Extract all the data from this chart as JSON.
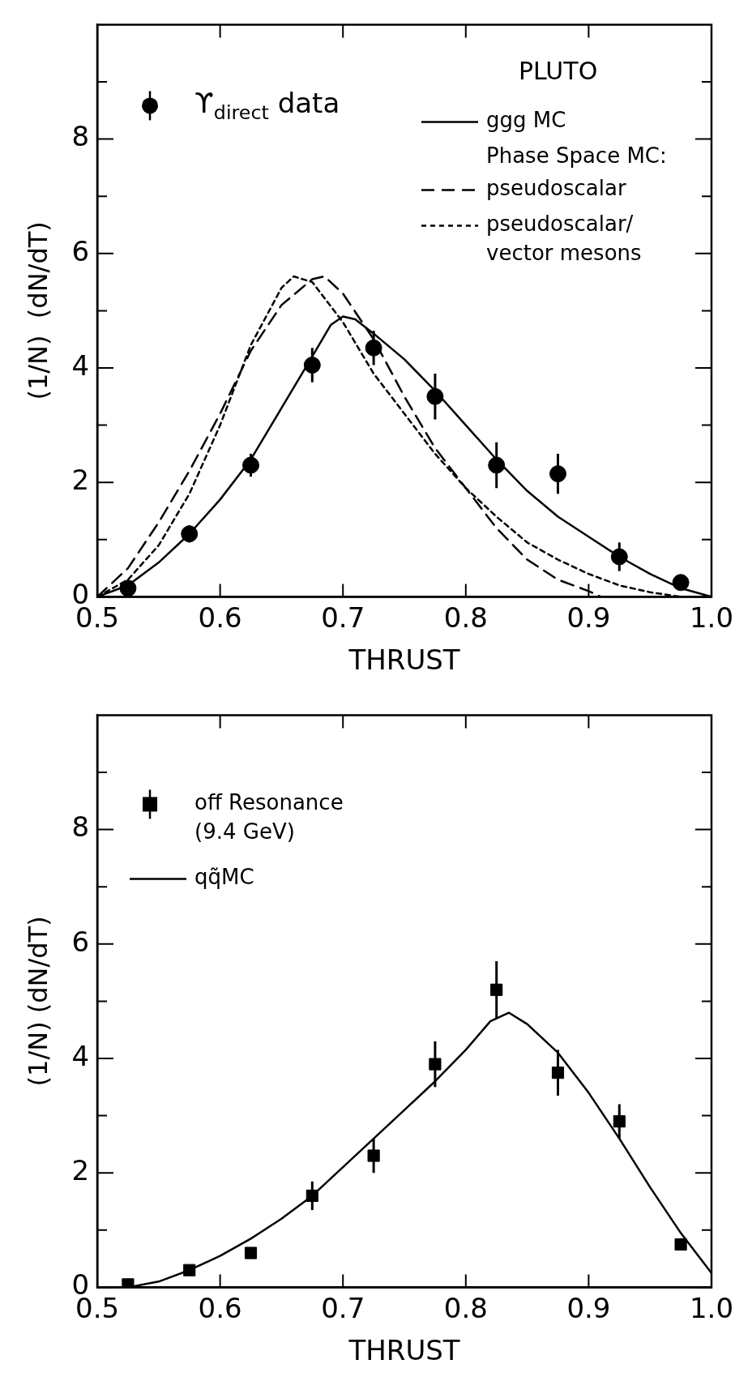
{
  "chart_data": [
    {
      "type": "scatter",
      "xlabel": "THRUST",
      "ylabel": "(1/N)  (dN/dT)",
      "xlim": [
        0.5,
        1.0
      ],
      "ylim": [
        0,
        10
      ],
      "xticks": [
        0.5,
        0.6,
        0.7,
        0.8,
        0.9,
        {
          "value": 1.0,
          "label": "1.0"
        }
      ],
      "yticks": [
        0,
        {
          "value": 1,
          "label": null
        },
        2,
        {
          "value": 3,
          "label": null
        },
        4,
        {
          "value": 5,
          "label": null
        },
        6,
        {
          "value": 7,
          "label": null
        },
        8,
        {
          "value": 9,
          "label": null
        }
      ],
      "grid": false,
      "legend": "top",
      "annotations": [
        "PLUTO",
        "Phase Space MC:"
      ],
      "series": [
        {
          "name": "ϒ$_{direct}$ data",
          "marker": "circle",
          "color": "#000000",
          "x": [
            0.525,
            0.575,
            0.625,
            0.675,
            0.725,
            0.775,
            0.825,
            0.875,
            0.925,
            0.975
          ],
          "values": [
            0.15,
            1.1,
            2.3,
            4.05,
            4.35,
            3.5,
            2.3,
            2.15,
            0.7,
            0.25
          ],
          "errors": [
            0.1,
            0.15,
            0.2,
            0.3,
            0.3,
            0.4,
            0.4,
            0.35,
            0.25,
            0.1
          ]
        },
        {
          "name": "ggg MC",
          "type": "line",
          "line_style": "solid",
          "color": "#000000",
          "x": [
            0.5,
            0.525,
            0.55,
            0.575,
            0.6,
            0.625,
            0.65,
            0.675,
            0.69,
            0.7,
            0.71,
            0.725,
            0.75,
            0.775,
            0.8,
            0.825,
            0.85,
            0.875,
            0.9,
            0.925,
            0.95,
            0.975,
            1.0
          ],
          "values": [
            0,
            0.2,
            0.6,
            1.1,
            1.7,
            2.4,
            3.3,
            4.2,
            4.75,
            4.9,
            4.85,
            4.6,
            4.15,
            3.6,
            3.0,
            2.4,
            1.85,
            1.4,
            1.05,
            0.7,
            0.4,
            0.15,
            0
          ]
        },
        {
          "name": "pseudoscalar",
          "type": "line",
          "line_style": "dashed",
          "color": "#000000",
          "x": [
            0.5,
            0.525,
            0.55,
            0.575,
            0.6,
            0.625,
            0.65,
            0.675,
            0.685,
            0.7,
            0.725,
            0.75,
            0.775,
            0.8,
            0.825,
            0.85,
            0.875,
            0.9,
            0.91
          ],
          "values": [
            0,
            0.5,
            1.3,
            2.2,
            3.2,
            4.3,
            5.1,
            5.55,
            5.6,
            5.3,
            4.5,
            3.5,
            2.6,
            1.9,
            1.2,
            0.65,
            0.3,
            0.1,
            0
          ]
        },
        {
          "name": "pseudoscalar/ vector mesons",
          "type": "line",
          "line_style": "dotted",
          "color": "#000000",
          "x": [
            0.5,
            0.525,
            0.55,
            0.575,
            0.6,
            0.625,
            0.65,
            0.66,
            0.675,
            0.7,
            0.725,
            0.75,
            0.775,
            0.8,
            0.825,
            0.85,
            0.875,
            0.9,
            0.925,
            0.95,
            0.975
          ],
          "values": [
            0,
            0.3,
            0.9,
            1.8,
            3.0,
            4.4,
            5.4,
            5.6,
            5.5,
            4.8,
            3.9,
            3.2,
            2.5,
            1.9,
            1.4,
            0.95,
            0.65,
            0.4,
            0.2,
            0.08,
            0
          ]
        }
      ]
    },
    {
      "type": "scatter",
      "xlabel": "THRUST",
      "ylabel": "(1/N) (dN/dT)",
      "xlim": [
        0.5,
        1.0
      ],
      "ylim": [
        0,
        10
      ],
      "xticks": [
        0.5,
        0.6,
        0.7,
        0.8,
        0.9,
        {
          "value": 1.0,
          "label": "1.0"
        }
      ],
      "yticks": [
        0,
        {
          "value": 1,
          "label": null
        },
        2,
        {
          "value": 3,
          "label": null
        },
        4,
        {
          "value": 5,
          "label": null
        },
        6,
        {
          "value": 7,
          "label": null
        },
        8,
        {
          "value": 9,
          "label": null
        }
      ],
      "grid": false,
      "legend": "top left",
      "series": [
        {
          "name": "off Resonance (9.4 GeV)",
          "marker": "square",
          "color": "#000000",
          "x": [
            0.525,
            0.575,
            0.625,
            0.675,
            0.725,
            0.775,
            0.825,
            0.875,
            0.925,
            0.975
          ],
          "values": [
            0.05,
            0.3,
            0.6,
            1.6,
            2.3,
            3.9,
            5.2,
            3.75,
            2.9,
            0.75
          ],
          "errors": [
            0.05,
            0.08,
            0.1,
            0.25,
            0.3,
            0.4,
            0.5,
            0.4,
            0.3,
            0.1
          ]
        },
        {
          "name": "qq̃MC",
          "type": "line",
          "line_style": "solid",
          "color": "#000000",
          "x": [
            0.525,
            0.55,
            0.575,
            0.6,
            0.625,
            0.65,
            0.675,
            0.7,
            0.725,
            0.75,
            0.775,
            0.8,
            0.82,
            0.835,
            0.85,
            0.875,
            0.9,
            0.925,
            0.95,
            0.975,
            1.0
          ],
          "values": [
            0,
            0.1,
            0.3,
            0.55,
            0.85,
            1.2,
            1.6,
            2.1,
            2.6,
            3.1,
            3.6,
            4.15,
            4.65,
            4.8,
            4.6,
            4.1,
            3.4,
            2.6,
            1.75,
            0.95,
            0.25
          ]
        }
      ]
    }
  ]
}
